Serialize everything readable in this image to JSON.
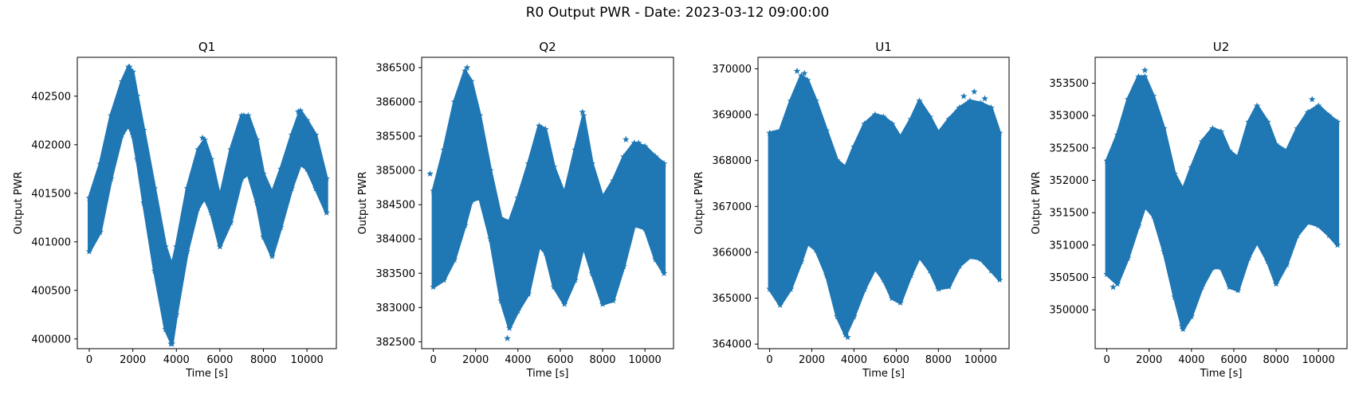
{
  "figure_title": "R0 Output PWR - Date: 2023-03-12 09:00:00",
  "colors": {
    "series": "#1f77b4",
    "axes": "#000000",
    "background": "#ffffff"
  },
  "chart_data": [
    {
      "type": "scatter",
      "title": "Q1",
      "xlabel": "Time [s]",
      "ylabel": "Output PWR",
      "marker": "star",
      "xlim": [
        -550,
        11350
      ],
      "ylim": [
        399900,
        402900
      ],
      "xticks": [
        0,
        2000,
        4000,
        6000,
        8000,
        10000
      ],
      "yticks": [
        400000,
        400500,
        401000,
        401500,
        402000,
        402500
      ],
      "ytick_labels": [
        "400000",
        "400500",
        "401000",
        "401500",
        "402000",
        "402500"
      ],
      "x": [
        0,
        500,
        1000,
        1500,
        1800,
        2000,
        2200,
        2500,
        3000,
        3500,
        3800,
        4000,
        4500,
        5000,
        5300,
        5600,
        6000,
        6500,
        7000,
        7300,
        7700,
        8000,
        8400,
        8800,
        9300,
        9700,
        10000,
        10400,
        10900
      ],
      "upper": [
        401450,
        401800,
        402300,
        402650,
        402800,
        402750,
        402500,
        402150,
        401550,
        400950,
        400750,
        400950,
        401550,
        401950,
        402050,
        401850,
        401450,
        401950,
        402300,
        402300,
        402050,
        401700,
        401500,
        401750,
        402100,
        402350,
        402250,
        402100,
        401650
      ],
      "lower": [
        400900,
        401100,
        401650,
        402100,
        402200,
        402100,
        401850,
        401400,
        400700,
        400100,
        399950,
        400250,
        400900,
        401350,
        401450,
        401300,
        400950,
        401200,
        401650,
        401700,
        401400,
        401050,
        400850,
        401150,
        401550,
        401800,
        401750,
        401550,
        401300
      ],
      "outliers": [
        [
          1850,
          402800
        ],
        [
          5200,
          402070
        ],
        [
          7100,
          402300
        ],
        [
          9600,
          402340
        ],
        [
          3750,
          399950
        ]
      ]
    },
    {
      "type": "scatter",
      "title": "Q2",
      "xlabel": "Time [s]",
      "ylabel": "Output PWR",
      "marker": "star",
      "xlim": [
        -550,
        11350
      ],
      "ylim": [
        382400,
        386650
      ],
      "xticks": [
        0,
        2000,
        4000,
        6000,
        8000,
        10000
      ],
      "yticks": [
        382500,
        383000,
        383500,
        384000,
        384500,
        385000,
        385500,
        386000,
        386500
      ],
      "ytick_labels": [
        "382500",
        "383000",
        "383500",
        "384000",
        "384500",
        "385000",
        "385500",
        "386000",
        "386500"
      ],
      "x": [
        0,
        500,
        1000,
        1500,
        1800,
        2200,
        2700,
        3200,
        3600,
        4000,
        4500,
        5000,
        5300,
        5700,
        6200,
        6700,
        7100,
        7500,
        8000,
        8500,
        9000,
        9500,
        10000,
        10500,
        10900
      ],
      "upper": [
        384700,
        385300,
        386000,
        386450,
        386300,
        385800,
        385000,
        384300,
        384250,
        384600,
        385100,
        385650,
        385600,
        385050,
        384650,
        385300,
        385800,
        385100,
        384600,
        384850,
        385200,
        385400,
        385350,
        385200,
        385100
      ],
      "lower": [
        383300,
        383400,
        383700,
        384200,
        384550,
        384600,
        384000,
        383100,
        382700,
        382950,
        383200,
        383900,
        383800,
        383300,
        383050,
        383400,
        383900,
        383500,
        383050,
        383100,
        383600,
        384200,
        384150,
        383700,
        383500
      ],
      "outliers": [
        [
          1600,
          386500
        ],
        [
          3500,
          382550
        ],
        [
          7050,
          385850
        ],
        [
          9100,
          385450
        ],
        [
          9700,
          385400
        ],
        [
          -150,
          384950
        ]
      ]
    },
    {
      "type": "scatter",
      "title": "U1",
      "xlabel": "Time [s]",
      "ylabel": "Output PWR",
      "marker": "star",
      "xlim": [
        -550,
        11350
      ],
      "ylim": [
        363900,
        370250
      ],
      "xticks": [
        0,
        2000,
        4000,
        6000,
        8000,
        10000
      ],
      "yticks": [
        364000,
        365000,
        366000,
        367000,
        368000,
        369000,
        370000
      ],
      "ytick_labels": [
        "364000",
        "365000",
        "366000",
        "367000",
        "368000",
        "369000",
        "370000"
      ],
      "x": [
        0,
        500,
        1000,
        1500,
        1800,
        2200,
        2700,
        3200,
        3600,
        4000,
        4500,
        5000,
        5400,
        5800,
        6200,
        6700,
        7100,
        7600,
        8000,
        8500,
        9000,
        9500,
        10000,
        10500,
        10900
      ],
      "upper": [
        368600,
        368650,
        369300,
        369850,
        369750,
        369300,
        368650,
        368000,
        367850,
        368300,
        368800,
        369000,
        368950,
        368800,
        368500,
        368900,
        369300,
        368950,
        368600,
        368900,
        369150,
        369300,
        369250,
        369150,
        368600
      ],
      "lower": [
        365200,
        364850,
        365200,
        365800,
        366200,
        366050,
        365500,
        364600,
        364200,
        364600,
        365200,
        365650,
        365400,
        365000,
        364900,
        365500,
        365900,
        365600,
        365200,
        365250,
        365700,
        365900,
        365850,
        365600,
        365400
      ],
      "outliers": [
        [
          1300,
          369950
        ],
        [
          1650,
          369900
        ],
        [
          3700,
          364150
        ],
        [
          9700,
          369500
        ],
        [
          10200,
          369350
        ],
        [
          9200,
          369400
        ]
      ]
    },
    {
      "type": "scatter",
      "title": "U2",
      "xlabel": "Time [s]",
      "ylabel": "Output PWR",
      "marker": "star",
      "xlim": [
        -550,
        11350
      ],
      "ylim": [
        349400,
        353900
      ],
      "xticks": [
        0,
        2000,
        4000,
        6000,
        8000,
        10000
      ],
      "yticks": [
        350000,
        350500,
        351000,
        351500,
        352000,
        352500,
        353000,
        353500
      ],
      "ytick_labels": [
        "350000",
        "350500",
        "351000",
        "351500",
        "352000",
        "352500",
        "353000",
        "353500"
      ],
      "x": [
        0,
        500,
        1000,
        1500,
        1800,
        2200,
        2700,
        3200,
        3600,
        4000,
        4500,
        5000,
        5400,
        5800,
        6200,
        6700,
        7100,
        7600,
        8000,
        8500,
        9000,
        9500,
        10000,
        10500,
        10900
      ],
      "upper": [
        352300,
        352700,
        353250,
        353600,
        353600,
        353300,
        352800,
        352100,
        351850,
        352200,
        352600,
        352800,
        352750,
        352450,
        352350,
        352900,
        353150,
        352900,
        352550,
        352450,
        352800,
        353050,
        353150,
        353000,
        352900
      ],
      "lower": [
        350550,
        350400,
        350800,
        351300,
        351600,
        351450,
        350900,
        350200,
        349700,
        349900,
        350350,
        350650,
        350650,
        350350,
        350300,
        350800,
        351050,
        350750,
        350400,
        350700,
        351150,
        351350,
        351300,
        351150,
        351000
      ],
      "outliers": [
        [
          1800,
          353700
        ],
        [
          9700,
          353250
        ],
        [
          3550,
          349750
        ],
        [
          300,
          350350
        ]
      ]
    }
  ]
}
